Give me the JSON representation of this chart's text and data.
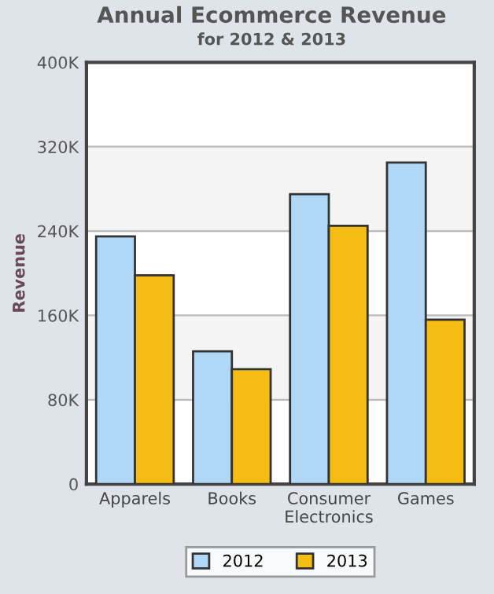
{
  "chart_data": {
    "type": "bar",
    "title": "Annual Ecommerce Revenue",
    "subtitle": "for 2012 & 2013",
    "ylabel": "Revenue",
    "categories": [
      "Apparels",
      "Books",
      "Consumer\nElectronics",
      "Games"
    ],
    "series": [
      {
        "name": "2012",
        "color": "#b0d8f6",
        "values": [
          235000,
          126000,
          275000,
          305000
        ]
      },
      {
        "name": "2013",
        "color": "#f5bc14",
        "values": [
          198000,
          109000,
          245000,
          156000
        ]
      }
    ],
    "ylim": [
      0,
      400000
    ],
    "yticks": [
      {
        "value": 0,
        "label": "0"
      },
      {
        "value": 80000,
        "label": "80K"
      },
      {
        "value": 160000,
        "label": "160K"
      },
      {
        "value": 240000,
        "label": "240K"
      },
      {
        "value": 320000,
        "label": "320K"
      },
      {
        "value": 400000,
        "label": "400K"
      }
    ],
    "grid": "y",
    "legend": "bottom"
  }
}
